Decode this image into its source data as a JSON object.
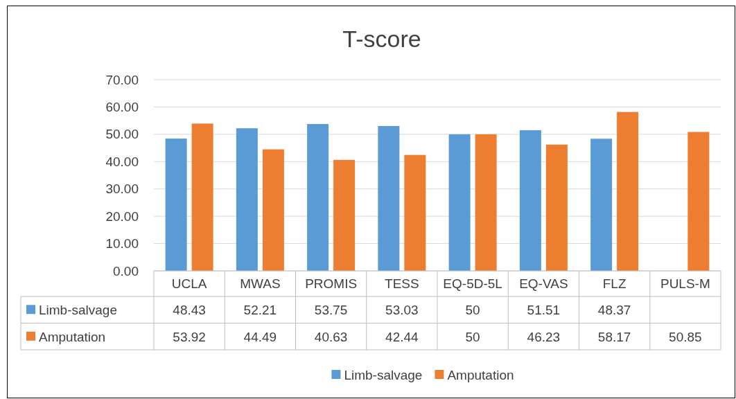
{
  "chart_data": {
    "type": "bar",
    "title": "T-score",
    "categories": [
      "UCLA",
      "MWAS",
      "PROMIS",
      "TESS",
      "EQ-5D-5L",
      "EQ-VAS",
      "FLZ",
      "PULS-M"
    ],
    "series": [
      {
        "name": "Limb-salvage",
        "color": "#5b9bd5",
        "values": [
          48.43,
          52.21,
          53.75,
          53.03,
          50,
          51.51,
          48.37,
          null
        ]
      },
      {
        "name": "Amputation",
        "color": "#ed7d31",
        "values": [
          53.92,
          44.49,
          40.63,
          42.44,
          50,
          46.23,
          58.17,
          50.85
        ]
      }
    ],
    "ylim": [
      0,
      70
    ],
    "yticks": [
      {
        "value": 0,
        "label": "0.00"
      },
      {
        "value": 10,
        "label": "10.00"
      },
      {
        "value": 20,
        "label": "20.00"
      },
      {
        "value": 30,
        "label": "30.00"
      },
      {
        "value": 40,
        "label": "40.00"
      },
      {
        "value": 50,
        "label": "50.00"
      },
      {
        "value": 60,
        "label": "60.00"
      },
      {
        "value": 70,
        "label": "70.00"
      }
    ],
    "grid": "y",
    "legend": "bottom",
    "data_labels": true
  }
}
